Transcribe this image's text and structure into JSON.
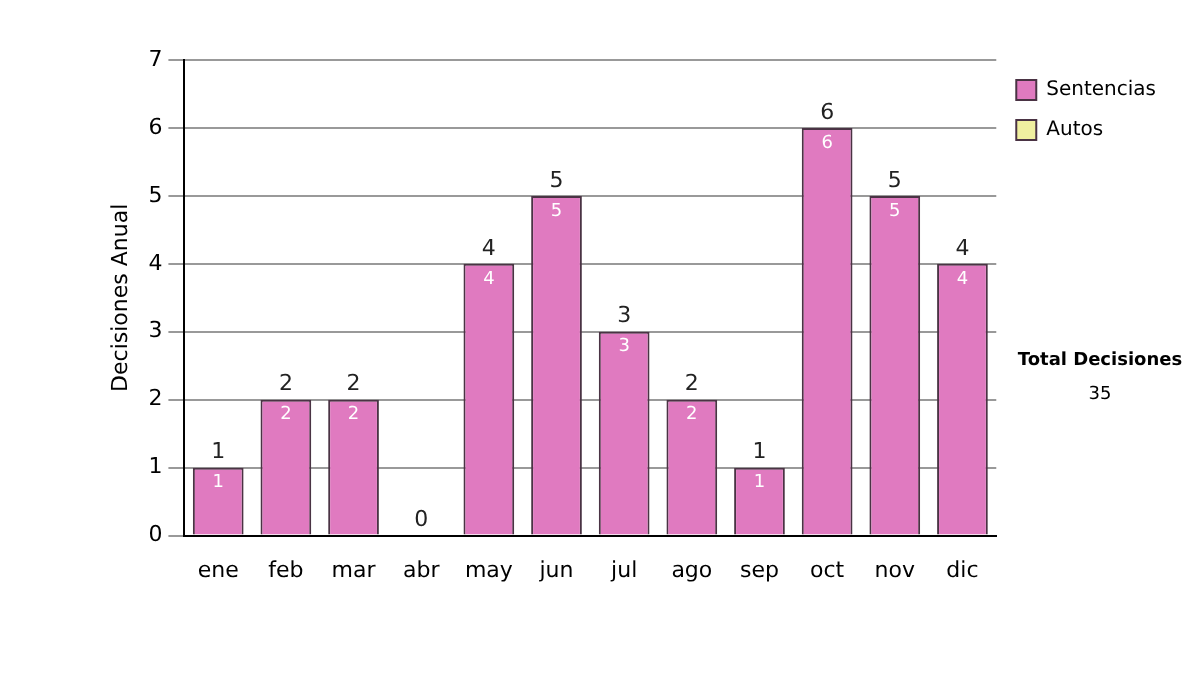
{
  "chart_data": {
    "type": "bar",
    "ylabel": "Decisiones Anual",
    "categories": [
      "ene",
      "feb",
      "mar",
      "abr",
      "may",
      "jun",
      "jul",
      "ago",
      "sep",
      "oct",
      "nov",
      "dic"
    ],
    "series": [
      {
        "name": "Sentencias",
        "color": "#e07ac0",
        "values": [
          1,
          2,
          2,
          0,
          4,
          5,
          3,
          2,
          1,
          6,
          5,
          4
        ],
        "value_labels": [
          "1",
          "2",
          "2",
          null,
          "4",
          "5",
          "3",
          "2",
          "1",
          "6",
          "5",
          "4"
        ]
      },
      {
        "name": "Autos",
        "color": "#f0f0a0",
        "values": [
          0,
          0,
          0,
          0,
          0,
          0,
          0,
          0,
          0,
          0,
          0,
          0
        ]
      }
    ],
    "stacked": true,
    "totals": [
      "1",
      "2",
      "2",
      "0",
      "4",
      "5",
      "3",
      "2",
      "1",
      "6",
      "5",
      "4"
    ],
    "ylim": [
      0,
      7
    ],
    "yticks": [
      0,
      1,
      2,
      3,
      4,
      5,
      6,
      7
    ],
    "grid": "y",
    "legend": "right",
    "annotations": [
      "Total Decisiones",
      "35"
    ]
  }
}
